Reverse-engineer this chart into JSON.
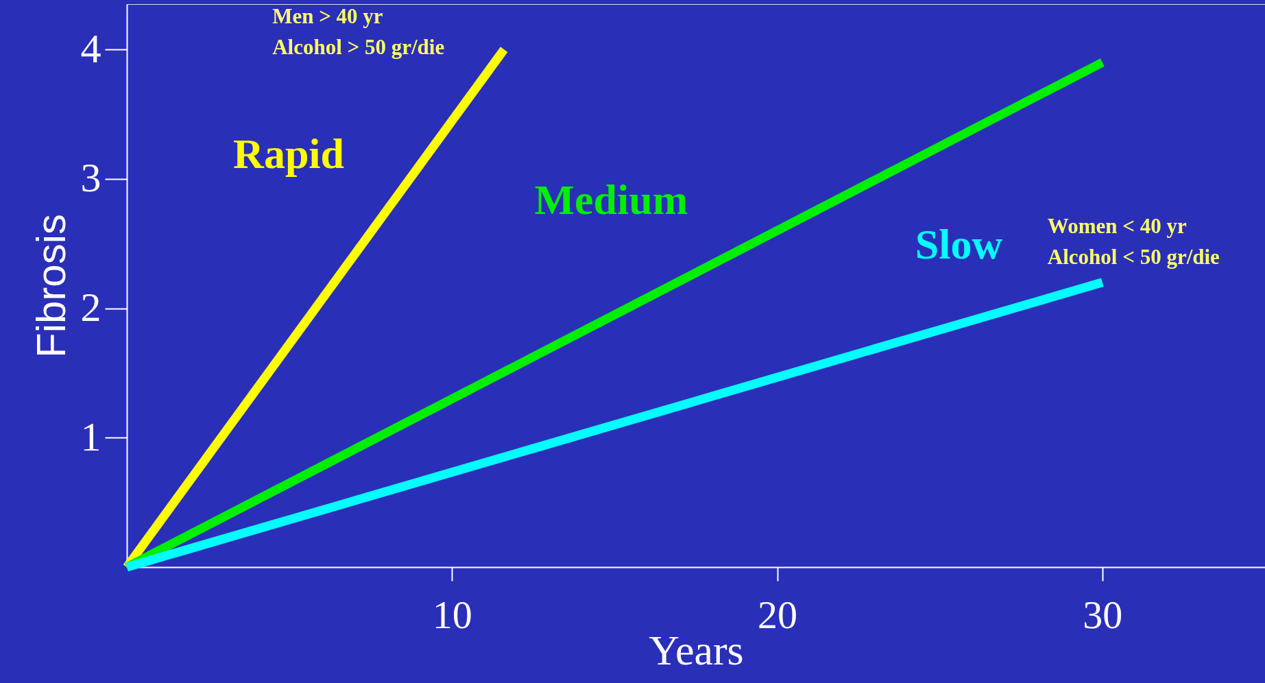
{
  "chart_data": {
    "type": "line",
    "xlabel": "Years",
    "ylabel": "Fibrosis",
    "xlim": [
      0,
      35
    ],
    "ylim": [
      0,
      4.35
    ],
    "xticks": [
      10,
      20,
      30
    ],
    "yticks": [
      1,
      2,
      3,
      4
    ],
    "grid": false,
    "marker": "none",
    "line_style": "solid",
    "series": [
      {
        "name": "Rapid",
        "color": "#ffff00",
        "x": [
          0,
          11.6
        ],
        "values": [
          0,
          4
        ]
      },
      {
        "name": "Medium",
        "color": "#00ee00",
        "x": [
          0,
          30
        ],
        "values": [
          0,
          3.9
        ]
      },
      {
        "name": "Slow",
        "color": "#00ffff",
        "x": [
          0,
          30
        ],
        "values": [
          0,
          2.2
        ]
      }
    ],
    "annotations": [
      "Men > 40 yr",
      "Alcohol > 50 gr/die",
      "Women < 40 yr",
      "Alcohol < 50 gr/die"
    ]
  }
}
